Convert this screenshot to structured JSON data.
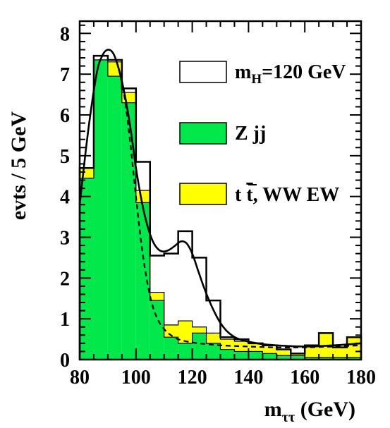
{
  "chart_data": {
    "type": "bar",
    "xlabel": "m",
    "xlabel_sub": "ττ",
    "xlabel_unit": " (GeV)",
    "ylabel": "evts / 5 GeV",
    "xlim": [
      80,
      180
    ],
    "ylim": [
      0,
      8.3
    ],
    "x_ticks": [
      80,
      100,
      120,
      140,
      160,
      180
    ],
    "y_ticks": [
      0,
      1,
      2,
      3,
      4,
      5,
      6,
      7,
      8
    ],
    "bin_edges": [
      80,
      85,
      90,
      95,
      100,
      105,
      110,
      115,
      120,
      125,
      130,
      135,
      140,
      145,
      150,
      155,
      160,
      165,
      170,
      175,
      180
    ],
    "legend_placement": "right",
    "series": [
      {
        "name": "Z jj",
        "kind": "hist-fill",
        "color": "#00e84a",
        "values": [
          4.45,
          7.35,
          6.95,
          6.3,
          3.85,
          1.45,
          0.55,
          0.4,
          0.65,
          0.4,
          0.25,
          0.2,
          0.2,
          0.15,
          0.1,
          0.1,
          0.05,
          0.05,
          0.05,
          0.05
        ]
      },
      {
        "name": "t t, WW EW",
        "name_parts": [
          "t",
          "t",
          ", WW EW"
        ],
        "kind": "hist-fill-stacked",
        "color": "#ffff00",
        "values": [
          4.7,
          7.35,
          7.3,
          6.55,
          4.15,
          1.65,
          0.85,
          0.95,
          0.8,
          0.65,
          0.5,
          0.45,
          0.4,
          0.35,
          0.25,
          0.15,
          0.35,
          0.65,
          0.3,
          0.55
        ]
      },
      {
        "name": "m",
        "name_sub": "H",
        "name_suffix": "=120 GeV",
        "kind": "hist-outline",
        "color": "#000000",
        "values": [
          4.7,
          7.45,
          7.35,
          6.65,
          4.85,
          2.55,
          2.6,
          3.15,
          2.5,
          1.45,
          0.55,
          0.5,
          0.4,
          0.35,
          0.25,
          0.15,
          0.35,
          0.65,
          0.3,
          0.55
        ]
      },
      {
        "name": "signal-fit",
        "kind": "curve-solid",
        "color": "#000000",
        "x": [
          80,
          83,
          86,
          88,
          90,
          92,
          94,
          96,
          98,
          100,
          102,
          104,
          106,
          108,
          110,
          112,
          114,
          116,
          118,
          120,
          122,
          124,
          126,
          128,
          130,
          132,
          134,
          136,
          140,
          145,
          150,
          155,
          160,
          165,
          170,
          175,
          180
        ],
        "y": [
          3.8,
          5.6,
          7.0,
          7.45,
          7.6,
          7.5,
          7.1,
          6.5,
          5.7,
          4.7,
          3.9,
          3.3,
          2.9,
          2.7,
          2.65,
          2.7,
          2.8,
          2.9,
          2.85,
          2.6,
          2.2,
          1.8,
          1.45,
          1.15,
          0.9,
          0.72,
          0.6,
          0.52,
          0.44,
          0.38,
          0.35,
          0.33,
          0.32,
          0.33,
          0.35,
          0.37,
          0.4
        ]
      },
      {
        "name": "background-fit",
        "kind": "curve-dashed",
        "color": "#000000",
        "x": [
          94,
          96,
          98,
          100,
          102,
          104,
          106,
          108,
          110,
          112,
          115,
          120,
          125,
          130,
          140,
          150,
          160,
          170,
          180
        ],
        "y": [
          7.1,
          6.4,
          5.3,
          4.0,
          2.8,
          1.9,
          1.3,
          0.95,
          0.75,
          0.62,
          0.5,
          0.42,
          0.38,
          0.35,
          0.32,
          0.3,
          0.3,
          0.32,
          0.35
        ]
      }
    ]
  }
}
